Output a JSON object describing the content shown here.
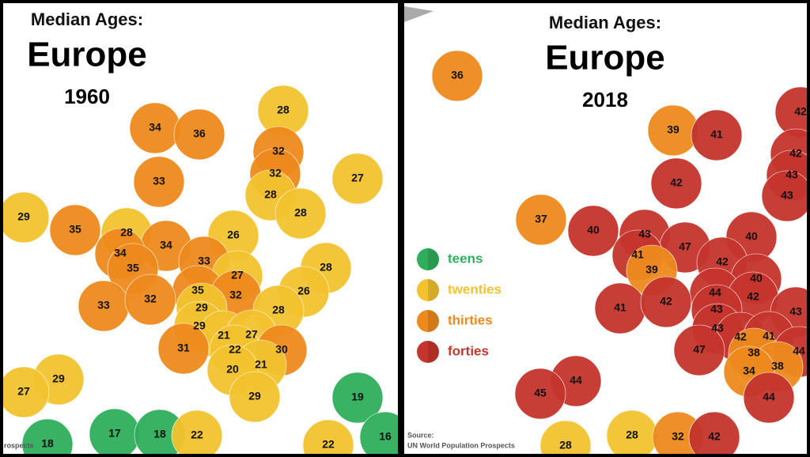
{
  "maps": [
    {
      "heading": "Median Ages:",
      "title": "Europe",
      "year": "1960",
      "ages": [
        28,
        34,
        36,
        32,
        32,
        33,
        27,
        28,
        29,
        28,
        35,
        28,
        26,
        34,
        34,
        33,
        35,
        28,
        27,
        35,
        32,
        26,
        33,
        32,
        29,
        28,
        29,
        21,
        27,
        31,
        22,
        30,
        21,
        20,
        29,
        19,
        27,
        29,
        17,
        18,
        22,
        18,
        22,
        16
      ],
      "source": "rospects"
    },
    {
      "heading": "Median Ages:",
      "title": "Europe",
      "year": "2018",
      "ages": [
        36,
        39,
        41,
        42,
        42,
        42,
        43,
        43,
        37,
        40,
        43,
        47,
        40,
        41,
        39,
        42,
        40,
        44,
        42,
        41,
        42,
        43,
        43,
        43,
        42,
        41,
        47,
        38,
        44,
        38,
        34,
        44,
        45,
        44,
        28,
        32,
        42,
        28
      ],
      "source_label": "Source:",
      "source": "UN World Population Prospects"
    }
  ],
  "legend": [
    {
      "label": "teens",
      "color": "#2fae5c"
    },
    {
      "label": "twenties",
      "color": "#f3c22f"
    },
    {
      "label": "thirties",
      "color": "#ee8a1d"
    },
    {
      "label": "forties",
      "color": "#c5342d"
    }
  ]
}
